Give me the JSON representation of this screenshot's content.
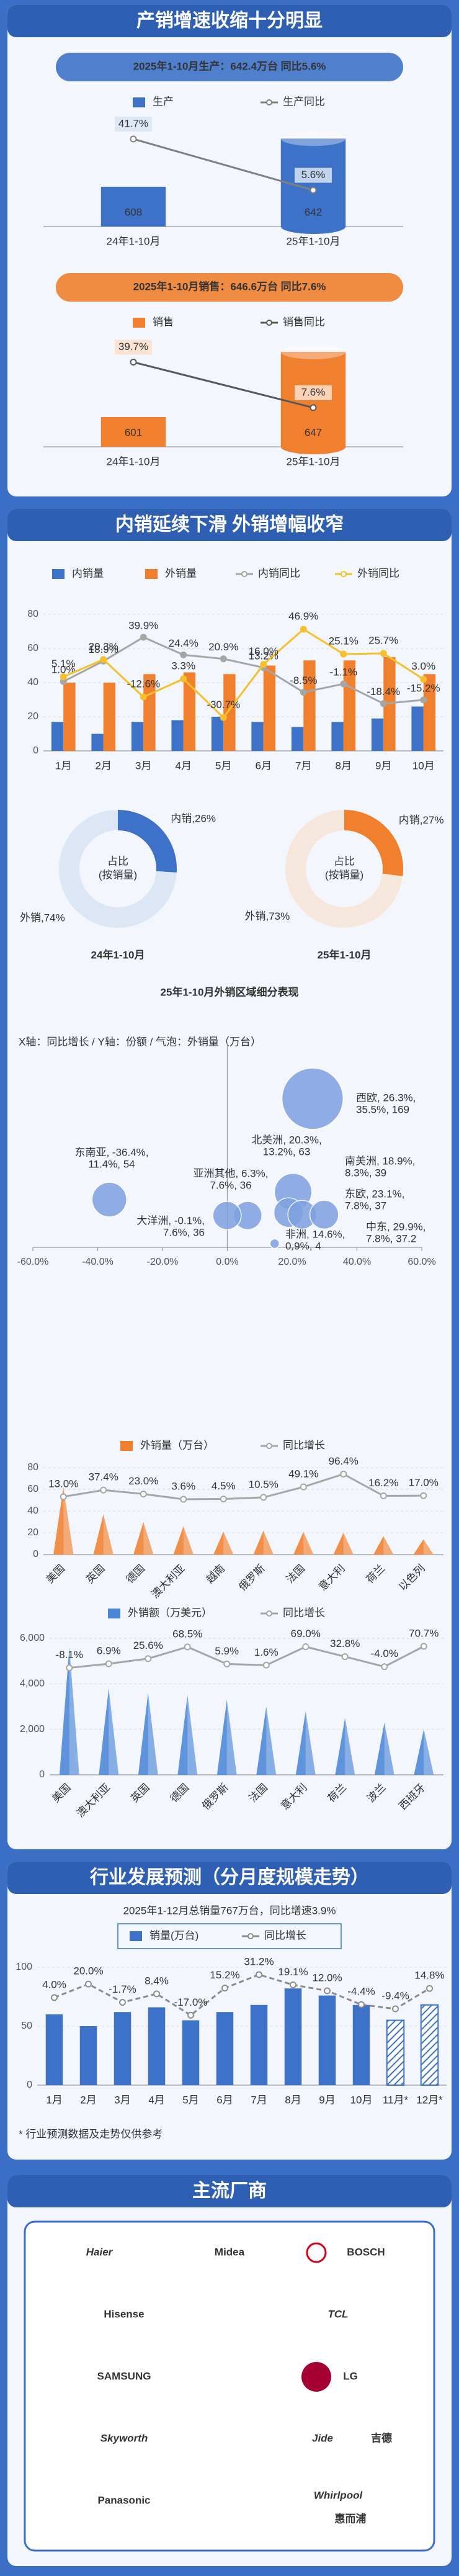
{
  "sections": [
    "产销增速收缩十分明显",
    "内销延续下滑 外销增幅收窄",
    "行业发展预测（分月度规模走势）",
    "主流厂商"
  ],
  "chart_data": [
    {
      "type": "bar",
      "title": "2025年1-10月生产：642.4万台   同比5.6%",
      "categories": [
        "24年1-10月",
        "25年1-10月"
      ],
      "ylim": [
        580,
        650
      ],
      "y2lim": [
        -20,
        50
      ],
      "series": [
        {
          "name": "生产",
          "color": "#3d72c8",
          "values": [
            608,
            642
          ]
        },
        {
          "name": "生产同比",
          "color": "#808080",
          "axis": "y2",
          "values": [
            41.7,
            5.6
          ],
          "value_labels": [
            "41.7%",
            "5.6%"
          ]
        }
      ]
    },
    {
      "type": "bar",
      "title": "2025年1-10月销售：646.6万台   同比7.6%",
      "categories": [
        "24年1-10月",
        "25年1-10月"
      ],
      "ylim": [
        580,
        650
      ],
      "y2lim": [
        -20,
        50
      ],
      "series": [
        {
          "name": "销售",
          "color": "#f07f2e",
          "values": [
            601,
            647
          ]
        },
        {
          "name": "销售同比",
          "color": "#595959",
          "axis": "y2",
          "values": [
            39.7,
            7.6
          ],
          "value_labels": [
            "39.7%",
            "7.6%"
          ]
        }
      ]
    },
    {
      "type": "bar",
      "categories": [
        "1月",
        "2月",
        "3月",
        "4月",
        "5月",
        "6月",
        "7月",
        "8月",
        "9月",
        "10月"
      ],
      "ylim": [
        0,
        80
      ],
      "yticks": [
        0,
        20,
        40,
        60,
        80
      ],
      "grid": true,
      "y2lim": [
        -60,
        60
      ],
      "series": [
        {
          "name": "内销量",
          "color": "#3d72c8",
          "values": [
            17,
            10,
            17,
            18,
            20,
            17,
            14,
            17,
            19,
            26
          ]
        },
        {
          "name": "外销量",
          "color": "#f07f2e",
          "values": [
            40,
            40,
            45,
            46,
            45,
            50,
            53,
            53,
            55,
            45
          ]
        },
        {
          "name": "内销同比",
          "color": "#a6a6a6",
          "axis": "y2",
          "values": [
            1.0,
            18.9,
            39.9,
            24.4,
            20.9,
            13.2,
            -8.5,
            -1.1,
            -18.4,
            -15.2
          ],
          "value_labels": [
            "1.0%",
            "18.9%",
            "39.9%",
            "24.4%",
            "20.9%",
            "13.2%",
            "-8.5%",
            "-1.1%",
            "-18.4%",
            "-15.2%"
          ]
        },
        {
          "name": "外销同比",
          "color": "#f5c02a",
          "axis": "y2",
          "values": [
            5.1,
            20.3,
            -12.6,
            3.3,
            -30.7,
            16.0,
            46.9,
            25.1,
            25.7,
            3.0
          ],
          "value_labels": [
            "5.1%",
            "20.3%",
            "-12.6%",
            "3.3%",
            "-30.7%",
            "16.0%",
            "46.9%",
            "25.1%",
            "25.7%",
            "3.0%"
          ]
        }
      ]
    },
    {
      "type": "pie",
      "title": "24年1-10月",
      "center_label": [
        "占比",
        "(按销量)"
      ],
      "categories": [
        "内销",
        "外销"
      ],
      "values": [
        26,
        74
      ],
      "value_labels": [
        "内销,26%",
        "外销,74%"
      ],
      "colors": [
        "#3d72c8",
        "#dce6f5"
      ]
    },
    {
      "type": "pie",
      "title": "25年1-10月",
      "center_label": [
        "占比",
        "(按销量)"
      ],
      "categories": [
        "内销",
        "外销"
      ],
      "values": [
        27,
        73
      ],
      "value_labels": [
        "内销,27%",
        "外销,73%"
      ],
      "colors": [
        "#f07f2e",
        "#f6e7dd"
      ]
    },
    {
      "type": "scatter",
      "title": "25年1-10月外销区域细分表现",
      "subtitle": "X轴：同比增长 / Y轴：份额 / 气泡：外销量（万台）",
      "xlim": [
        -60,
        60
      ],
      "xticks": [
        {
          "value": -60,
          "label": "-60.0%"
        },
        {
          "value": -40,
          "label": "-40.0%"
        },
        {
          "value": -20,
          "label": "-20.0%"
        },
        {
          "value": 0,
          "label": "0.0%"
        },
        {
          "value": 20,
          "label": "20.0%"
        },
        {
          "value": 40,
          "label": "40.0%"
        },
        {
          "value": 60,
          "label": "60.0%"
        }
      ],
      "ylim": [
        0,
        40
      ],
      "color": "#7ea1e0",
      "x": [
        26.3,
        -36.4,
        20.3,
        18.9,
        6.3,
        23.1,
        -0.1,
        29.9,
        14.6
      ],
      "y": [
        35.5,
        11.4,
        13.2,
        8.3,
        7.6,
        7.8,
        7.6,
        7.8,
        0.9
      ],
      "sizes": [
        169,
        54,
        63,
        39,
        36,
        37,
        36,
        37.2,
        4
      ],
      "labels": [
        [
          "西欧, 26.3%,",
          "35.5%, 169"
        ],
        [
          "东南亚, -36.4%,",
          "11.4%, 54"
        ],
        [
          "北美洲, 20.3%,",
          "13.2%, 63"
        ],
        [
          "南美洲, 18.9%,",
          "8.3%, 39"
        ],
        [
          "亚洲其他, 6.3%,",
          "7.6%, 36"
        ],
        [
          "东欧, 23.1%,",
          "7.8%, 37"
        ],
        [
          "大洋洲, -0.1%,",
          "7.6%, 36"
        ],
        [
          "中东, 29.9%,",
          "7.8%, 37.2"
        ],
        [
          "非洲, 14.6%,",
          "0.9%, 4"
        ]
      ]
    },
    {
      "type": "bar",
      "categories": [
        "美国",
        "英国",
        "德国",
        "澳大利亚",
        "越南",
        "俄罗斯",
        "法国",
        "意大利",
        "荷兰",
        "以色列"
      ],
      "ylim": [
        0,
        80
      ],
      "yticks": [
        0,
        20,
        40,
        60,
        80
      ],
      "grid": true,
      "y2lim": [
        -200,
        120
      ],
      "series": [
        {
          "name": "外销量（万台）",
          "color": "#f07f2e",
          "values": [
            62,
            37,
            30,
            26,
            21,
            22,
            21,
            20,
            17,
            14
          ]
        },
        {
          "name": "同比增长",
          "color": "#a6a6a6",
          "axis": "y2",
          "values": [
            13.0,
            37.4,
            23.0,
            3.6,
            4.5,
            10.5,
            49.1,
            96.4,
            16.2,
            17.0
          ],
          "value_labels": [
            "13.0%",
            "37.4%",
            "23.0%",
            "3.6%",
            "4.5%",
            "10.5%",
            "49.1%",
            "96.4%",
            "16.2%",
            "17.0%"
          ]
        }
      ]
    },
    {
      "type": "bar",
      "categories": [
        "美国",
        "澳大利亚",
        "英国",
        "德国",
        "俄罗斯",
        "法国",
        "意大利",
        "荷兰",
        "波兰",
        "西班牙"
      ],
      "ylim": [
        0,
        6000
      ],
      "yticks": [
        0,
        {
          "value": 2000,
          "label": "2,000"
        },
        {
          "value": 4000,
          "label": "4,000"
        },
        {
          "value": 6000,
          "label": "6,000"
        }
      ],
      "grid": true,
      "y2lim": [
        -400,
        100
      ],
      "series": [
        {
          "name": "外销额（万美元）",
          "color": "#4a86d8",
          "values": [
            5600,
            3800,
            3600,
            3500,
            3300,
            3000,
            2800,
            2500,
            2300,
            2000
          ]
        },
        {
          "name": "同比增长",
          "color": "#a6a6a6",
          "axis": "y2",
          "values": [
            -8.1,
            6.9,
            25.6,
            68.5,
            5.9,
            1.6,
            69.0,
            32.8,
            -4.0,
            70.7
          ],
          "value_labels": [
            "-8.1%",
            "6.9%",
            "25.6%",
            "68.5%",
            "5.9%",
            "1.6%",
            "69.0%",
            "32.8%",
            "-4.0%",
            "70.7%"
          ]
        }
      ]
    },
    {
      "type": "bar",
      "subtitle": "2025年1-12月总销量767万台，同比增速3.9%",
      "categories": [
        "1月",
        "2月",
        "3月",
        "4月",
        "5月",
        "6月",
        "7月",
        "8月",
        "9月",
        "10月",
        "11月*",
        "12月*"
      ],
      "forecast": [
        false,
        false,
        false,
        false,
        false,
        false,
        false,
        false,
        false,
        false,
        true,
        true
      ],
      "ylim": [
        0,
        100
      ],
      "yticks": [
        0,
        50,
        100
      ],
      "grid": true,
      "y2lim": [
        -100,
        40
      ],
      "series": [
        {
          "name": "销量(万台)",
          "color": "#3d72c8",
          "values": [
            60,
            50,
            62,
            66,
            55,
            62,
            68,
            82,
            76,
            68,
            55,
            68
          ]
        },
        {
          "name": "同比增长",
          "color": "#8c8c8c",
          "axis": "y2",
          "values": [
            4.0,
            20.0,
            -1.7,
            8.4,
            -17.0,
            15.2,
            31.2,
            19.1,
            12.0,
            -4.4,
            -9.4,
            14.8
          ],
          "value_labels": [
            "4.0%",
            "20.0%",
            "-1.7%",
            "8.4%",
            "-17.0%",
            "15.2%",
            "31.2%",
            "19.1%",
            "12.0%",
            "-4.4%",
            "-9.4%",
            "14.8%"
          ]
        }
      ],
      "footnote": "* 行业预测数据及走势仅供参考"
    }
  ],
  "brands": [
    {
      "name": "Haier"
    },
    {
      "name": "Midea"
    },
    {
      "name": "BOSCH"
    },
    {
      "name": "Hisense"
    },
    {
      "name": "TCL"
    },
    {
      "name": "SAMSUNG"
    },
    {
      "name": "LG"
    },
    {
      "name": "Skyworth"
    },
    {
      "name": "Jide",
      "sub": "吉德"
    },
    {
      "name": "Panasonic"
    },
    {
      "name": "Whirlpool",
      "sub": "惠而浦"
    }
  ]
}
